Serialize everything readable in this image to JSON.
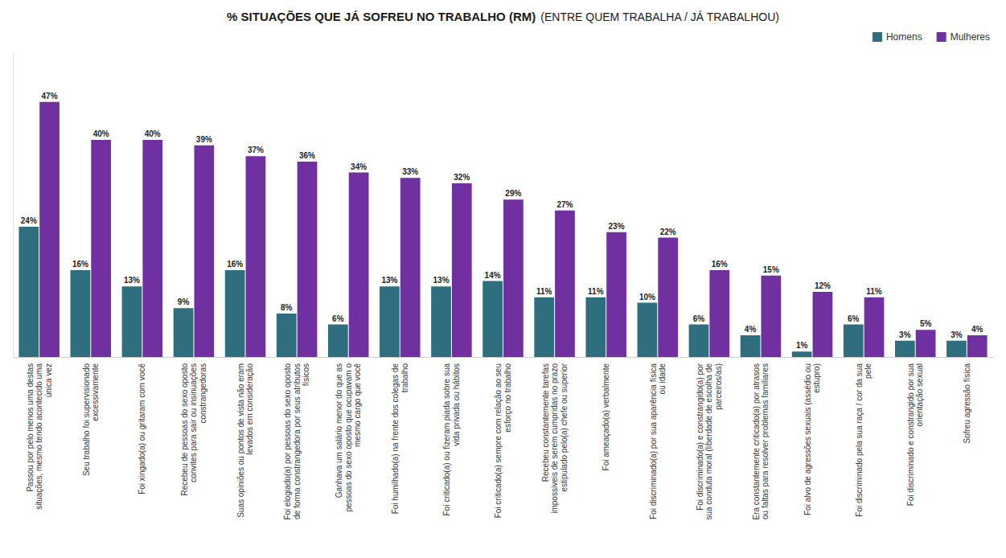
{
  "chart_data": {
    "type": "bar",
    "title": "% SITUAÇÕES QUE JÁ SOFREU NO TRABALHO (RM)",
    "subtitle": "(ENTRE QUEM TRABALHA / JÁ TRABALHOU)",
    "categories": [
      "Passou por pelo menos uma destas\nsituações, mesmo tendo acontecido uma\núnica vez",
      "Seu trabalho foi supervisionado\nexcessivamente",
      "Foi xingado(a) ou gritaram com você",
      "Recebeu de pessoas do sexo oposto\nconvites para sair ou insinuações\nconstrangedoras",
      "Suas opiniões ou pontos de vista não eram\nlevados em consideração",
      "Foi elogiado(a) por pessoas do sexo oposto\nde forma constrangedora por seus atributos\nfísicos",
      "Ganhava um salário menor do que as\npessoas do sexo oposto que ocupavam o\nmesmo cargo que você",
      "Foi humilhado(a) na frente dos colegas de\ntrabalho",
      "Foi criticado(a) ou fizeram piada sobre sua\nvida privada ou hábitos",
      "Foi criticado(a) sempre com relação ao seu\nesforço no trabalho",
      "Recebeu constantemente tarefas\nimpossiveis de serem cumpridas no prazo\nestipulado pelo(a) chefe ou superior",
      "Foi ameaçado(a) verbalmente",
      "Foi discriminado(a) por sua aparência física\nou idade",
      "Foi discriminado(a) e constrangido(a) por\nsua conduta moral (liberdade de escolha de\nparceiros/as)",
      "Era constantemente criticado(a) por atrasos\nou faltas para resolver problemas familiares",
      "Foi alvo de agressões sexuais (assédio ou\nestupro)",
      "Foi discriminado pela sua raça / cor da sua\npele",
      "Foi discriminado e constrangido por sua\norientação sexual",
      "Sofreu agressão física"
    ],
    "series": [
      {
        "name": "Homens",
        "color": "#2e6e7e",
        "values": [
          24,
          16,
          13,
          9,
          16,
          8,
          6,
          13,
          13,
          14,
          11,
          11,
          10,
          6,
          4,
          1,
          6,
          3,
          3
        ],
        "value_labels": [
          "24%",
          "16%",
          "13%",
          "9%",
          "16%",
          "8%",
          "6%",
          "13%",
          "13%",
          "14%",
          "11%",
          "11%",
          "10%",
          "6%",
          "4%",
          "1%",
          "6%",
          "3%",
          "3%"
        ]
      },
      {
        "name": "Mulheres",
        "color": "#7030a0",
        "values": [
          47,
          40,
          40,
          39,
          37,
          36,
          34,
          33,
          32,
          29,
          27,
          23,
          22,
          16,
          15,
          12,
          11,
          5,
          4
        ],
        "value_labels": [
          "47%",
          "40%",
          "40%",
          "39%",
          "37%",
          "36%",
          "34%",
          "33%",
          "32%",
          "29%",
          "27%",
          "23%",
          "22%",
          "16%",
          "15%",
          "12%",
          "11%",
          "5%",
          "4%"
        ]
      }
    ],
    "ylim": [
      0,
      56
    ],
    "grid": false,
    "legend": "top-right",
    "data_labels": true,
    "tick_labels": "x"
  }
}
